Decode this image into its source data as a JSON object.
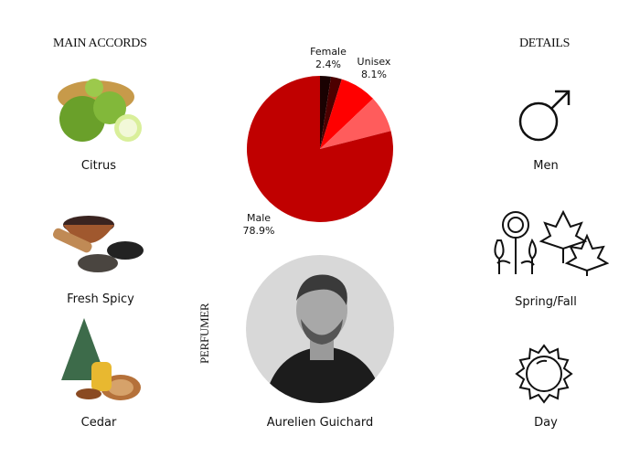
{
  "accords": {
    "title": "MAIN ACCORDS",
    "items": [
      {
        "label": "Citrus",
        "icon": "bergamot-image"
      },
      {
        "label": "Fresh Spicy",
        "icon": "pepper-image"
      },
      {
        "label": "Cedar",
        "icon": "cedar-image"
      }
    ]
  },
  "details": {
    "title": "DETAILS",
    "items": [
      {
        "label": "Men",
        "icon": "male-symbol-icon"
      },
      {
        "label": "Spring/Fall",
        "icon": "flowers-leaves-icon"
      },
      {
        "label": "Day",
        "icon": "sun-icon"
      }
    ]
  },
  "perfumer": {
    "title": "PERFUMER",
    "name": "Aurelien Guichard"
  },
  "chart_data": {
    "type": "pie",
    "slices": [
      {
        "name": "Female",
        "value": 2.4,
        "label": "2.4%",
        "color": "#1a0202"
      },
      {
        "value": 2.4,
        "color": "#4d0000"
      },
      {
        "name": "Unisex",
        "value": 8.1,
        "label": "8.1%",
        "color": "#ff0000"
      },
      {
        "value": 8.1,
        "color": "#ff5c5c"
      },
      {
        "name": "Male",
        "value": 78.9,
        "label": "78.9%",
        "color": "#c00000"
      }
    ]
  }
}
